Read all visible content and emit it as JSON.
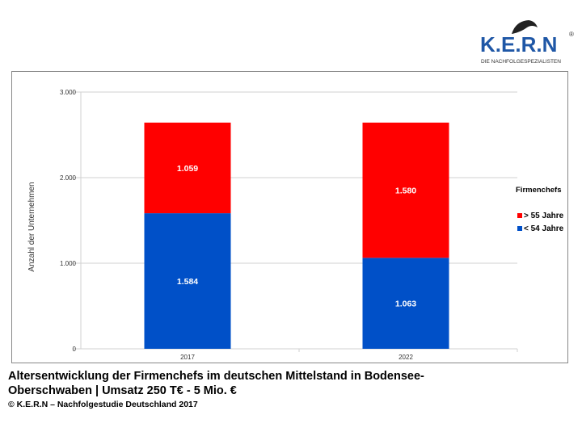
{
  "logo": {
    "name": "K.E.R.N",
    "tagline": "DIE NACHFOLGESPEZIALISTEN",
    "reg": "®"
  },
  "caption": {
    "line1": "Altersentwicklung der Firmenchefs im deutschen Mittelstand in Bodensee-",
    "line2": "Oberschwaben | Umsatz 250 T€ - 5 Mio. €",
    "source": "© K.E.R.N – Nachfolgestudie Deutschland 2017"
  },
  "chart_data": {
    "type": "bar",
    "stacked": true,
    "categories": [
      "2017",
      "2022"
    ],
    "series": [
      {
        "name": "< 54 Jahre",
        "values": [
          1584,
          1063
        ],
        "labels": [
          "1.584",
          "1.063"
        ],
        "color": "#0050c8"
      },
      {
        "name": "> 55 Jahre",
        "values": [
          1059,
          1580
        ],
        "labels": [
          "1.059",
          "1.580"
        ],
        "color": "#ff0000"
      }
    ],
    "ylabel": "Anzahl der Unternehmen",
    "xlabel": "",
    "ylim": [
      0,
      3000
    ],
    "yticks": [
      0,
      1000,
      2000,
      3000
    ],
    "ytick_labels": [
      "0",
      "1.000",
      "2.000",
      "3.000"
    ],
    "legend_title": "Firmenchefs",
    "legend": "right",
    "grid": true
  }
}
